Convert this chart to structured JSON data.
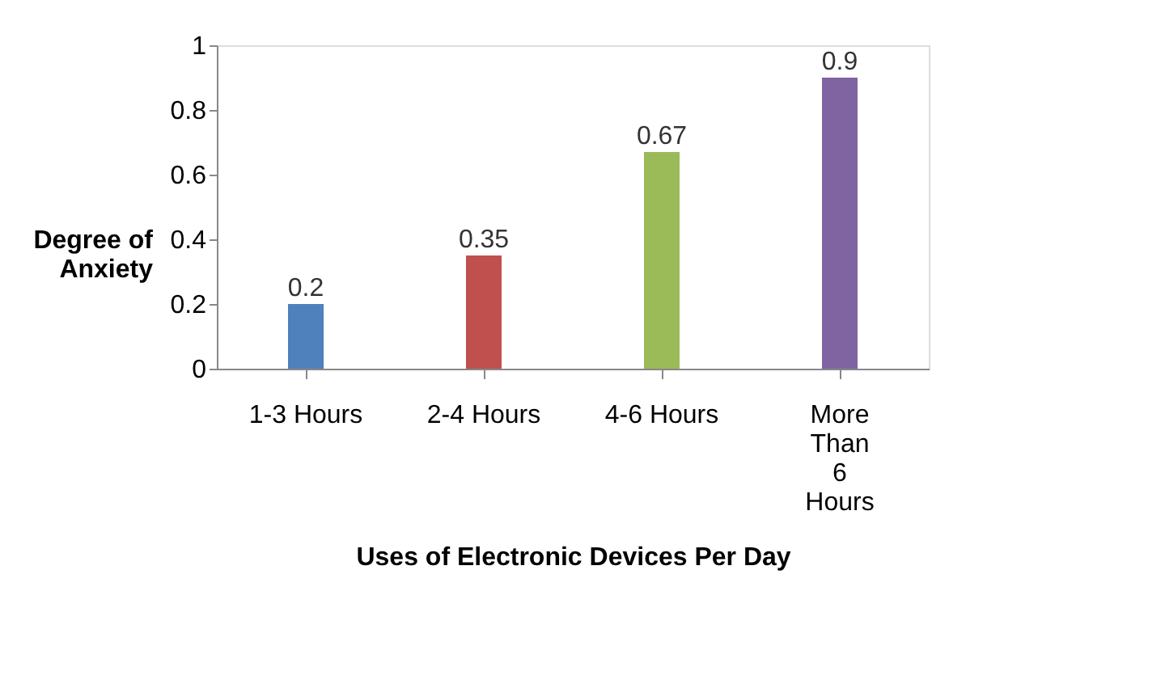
{
  "chart_data": {
    "type": "bar",
    "xlabel": "Uses of Electronic Devices Per Day",
    "ylabel": "Degree of Anxiety",
    "categories": [
      "1-3 Hours",
      "2-4 Hours",
      "4-6 Hours",
      "More Than 6 Hours"
    ],
    "values": [
      0.2,
      0.35,
      0.67,
      0.9
    ],
    "colors": [
      "#4f81bd",
      "#c0504d",
      "#9bbb59",
      "#8064a2"
    ],
    "ylim": [
      0,
      1
    ],
    "yticks": [
      0,
      0.2,
      0.4,
      0.6,
      0.8,
      1
    ],
    "data_labels": true,
    "grid": false
  }
}
